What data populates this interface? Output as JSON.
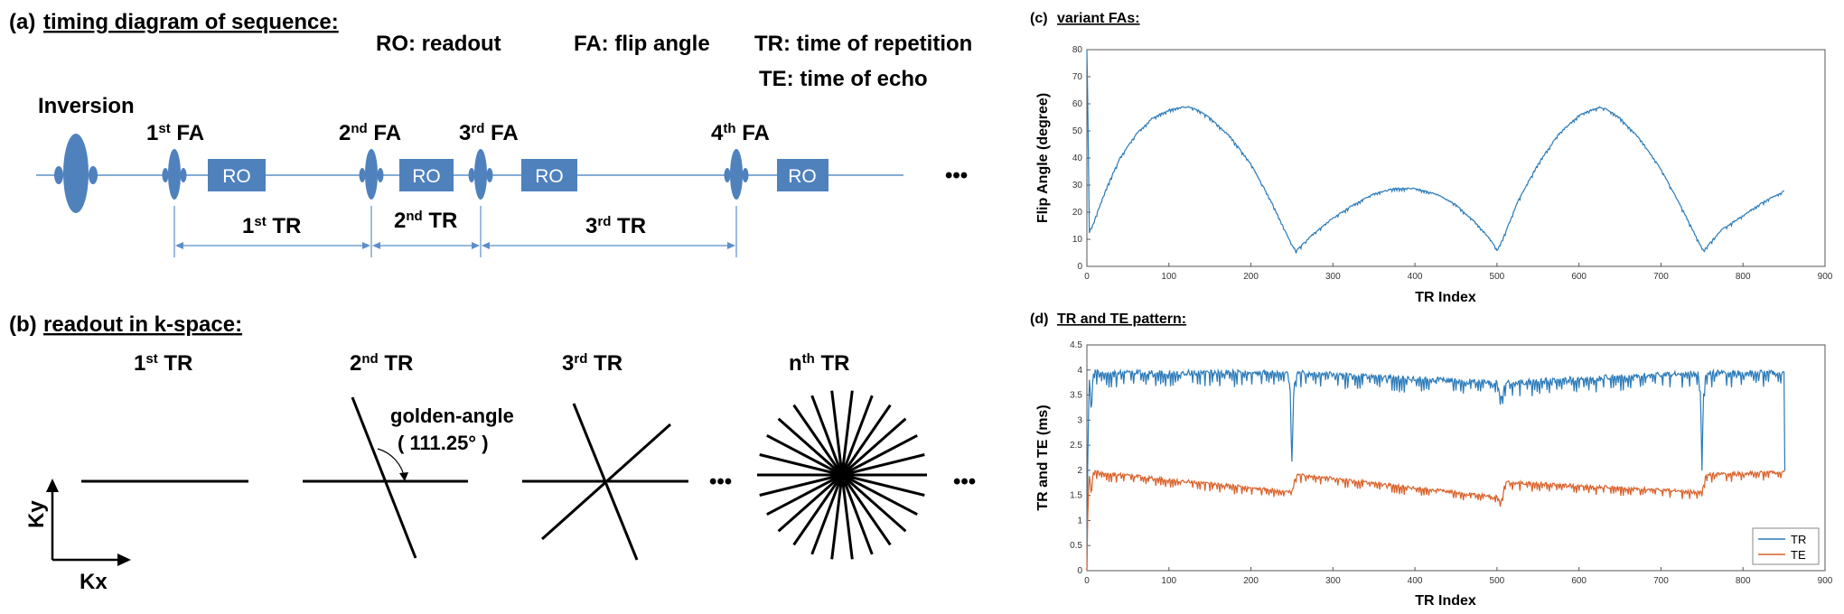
{
  "panel_a": {
    "label": "(a)",
    "title": "timing diagram of sequence:",
    "legend": {
      "ro": "RO: readout",
      "fa": "FA: flip angle",
      "tr": "TR: time of repetition",
      "te": "TE: time of echo"
    },
    "inversion": "Inversion",
    "fa_labels": [
      {
        "n": "1",
        "sup": "st",
        "txt": " FA"
      },
      {
        "n": "2",
        "sup": "nd",
        "txt": " FA"
      },
      {
        "n": "3",
        "sup": "rd",
        "txt": " FA"
      },
      {
        "n": "4",
        "sup": "th",
        "txt": " FA"
      }
    ],
    "ro_label": "RO",
    "tr_labels": [
      {
        "n": "1",
        "sup": "st",
        "txt": " TR"
      },
      {
        "n": "2",
        "sup": "nd",
        "txt": " TR"
      },
      {
        "n": "3",
        "sup": "rd",
        "txt": " TR"
      }
    ],
    "ellipsis": "•••"
  },
  "panel_b": {
    "label": "(b)",
    "title": "readout in k-space:",
    "tr_labels": [
      {
        "n": "1",
        "sup": "st",
        "txt": " TR"
      },
      {
        "n": "2",
        "sup": "nd",
        "txt": " TR"
      },
      {
        "n": "3",
        "sup": "rd",
        "txt": " TR"
      },
      {
        "n": "n",
        "sup": "th",
        "txt": " TR"
      }
    ],
    "golden_angle_label": "golden-angle",
    "golden_angle_value": "( 111.25° )",
    "kx": "Kx",
    "ky": "Ky",
    "ellipsis": "•••"
  },
  "chart_data": [
    {
      "type": "line",
      "label": "(c)",
      "title": "variant FAs:",
      "xlabel": "TR Index",
      "ylabel": "Flip Angle (degree)",
      "xlim": [
        0,
        900
      ],
      "ylim": [
        0,
        80
      ],
      "xticks": [
        0,
        100,
        200,
        300,
        400,
        500,
        600,
        700,
        800,
        900
      ],
      "yticks": [
        0,
        10,
        20,
        30,
        40,
        50,
        60,
        70,
        80
      ],
      "color": "#2a7ab9",
      "series": [
        {
          "name": "FA",
          "x": [
            0,
            1,
            3,
            8,
            15,
            25,
            40,
            60,
            80,
            100,
            115,
            125,
            135,
            150,
            175,
            200,
            225,
            250,
            255,
            262,
            275,
            300,
            325,
            350,
            375,
            400,
            425,
            450,
            475,
            495,
            500,
            505,
            512,
            525,
            550,
            575,
            600,
            615,
            625,
            635,
            650,
            675,
            700,
            725,
            748,
            752,
            760,
            775,
            800,
            825,
            850
          ],
          "values": [
            80,
            62,
            13,
            16,
            22,
            30,
            40,
            49,
            55,
            58,
            59,
            59,
            58,
            55,
            48,
            38,
            24,
            8,
            6,
            8,
            12,
            18,
            23,
            27,
            29,
            29,
            27,
            23,
            16,
            9,
            6,
            9,
            14,
            24,
            38,
            49,
            56,
            58,
            59,
            58,
            55,
            47,
            36,
            22,
            8,
            6,
            9,
            14,
            19,
            24,
            28
          ]
        }
      ]
    },
    {
      "type": "line",
      "label": "(d)",
      "title": "TR and TE pattern:",
      "xlabel": "TR Index",
      "ylabel": "TR and TE (ms)",
      "xlim": [
        0,
        900
      ],
      "ylim": [
        0,
        4.5
      ],
      "xticks": [
        0,
        100,
        200,
        300,
        400,
        500,
        600,
        700,
        800,
        900
      ],
      "yticks": [
        0,
        0.5,
        1,
        1.5,
        2,
        2.5,
        3,
        3.5,
        4,
        4.5
      ],
      "legend": [
        "TR",
        "TE"
      ],
      "series": [
        {
          "name": "TR",
          "color": "#2a7ab9",
          "x": [
            0,
            1,
            3,
            5,
            8,
            245,
            248,
            250,
            252,
            255,
            500,
            505,
            510,
            745,
            748,
            750,
            752,
            755,
            848,
            850,
            851
          ],
          "values": [
            0,
            2.2,
            4.0,
            3.3,
            4.0,
            4.0,
            3.6,
            2.2,
            3.6,
            4.0,
            3.8,
            3.5,
            3.8,
            4.0,
            3.6,
            2.2,
            3.6,
            4.0,
            4.0,
            4.0,
            2.0
          ]
        },
        {
          "name": "TE",
          "color": "#d9612a",
          "x": [
            0,
            1,
            3,
            5,
            8,
            250,
            255,
            500,
            505,
            510,
            750,
            755,
            848,
            850,
            851
          ],
          "values": [
            0,
            1.1,
            2.0,
            1.6,
            2.0,
            1.6,
            1.95,
            1.5,
            1.4,
            1.8,
            1.6,
            1.95,
            2.0,
            2.0,
            2.0
          ]
        }
      ]
    }
  ]
}
